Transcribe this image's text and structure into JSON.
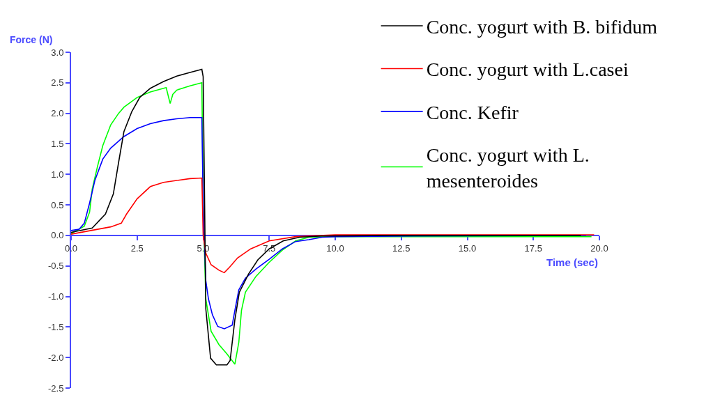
{
  "chart_data": {
    "type": "line",
    "xlabel": "Time (sec)",
    "ylabel": "Force (N)",
    "xlim": [
      0,
      20
    ],
    "xticks": [
      {
        "value": 0,
        "label": "0.0"
      },
      {
        "value": 2.5,
        "label": "2.5"
      },
      {
        "value": 5,
        "label": "5.0"
      },
      {
        "value": 7.5,
        "label": "7.5"
      },
      {
        "value": 10,
        "label": "10.0"
      },
      {
        "value": 12.5,
        "label": "12.5"
      },
      {
        "value": 15,
        "label": "15.0"
      },
      {
        "value": 17.5,
        "label": "17.5"
      },
      {
        "value": 20,
        "label": "20.0"
      }
    ],
    "ylim": [
      -2.5,
      3.0
    ],
    "yticks": [
      {
        "value": -2.5,
        "label": "-2.5"
      },
      {
        "value": -2,
        "label": "-2.0"
      },
      {
        "value": -1.5,
        "label": "-1.5"
      },
      {
        "value": -1,
        "label": "-1.0"
      },
      {
        "value": -0.5,
        "label": "-0.5"
      },
      {
        "value": 0,
        "label": "0.0"
      },
      {
        "value": 0.5,
        "label": "0.5"
      },
      {
        "value": 1,
        "label": "1.0"
      },
      {
        "value": 1.5,
        "label": "1.5"
      },
      {
        "value": 2,
        "label": "2.0"
      },
      {
        "value": 2.5,
        "label": "2.5"
      },
      {
        "value": 3,
        "label": "3.0"
      }
    ],
    "legend": "top right",
    "line_style": "solid",
    "marker": "none",
    "series": [
      {
        "name": "Conc. yogurt with B. bifidum",
        "color": "#000000",
        "x": [
          0,
          0.8,
          1.3,
          1.6,
          1.8,
          2.0,
          2.3,
          2.6,
          3.0,
          3.5,
          4.0,
          4.5,
          4.95,
          5.0,
          5.1,
          5.28,
          5.5,
          5.9,
          6.02,
          6.2,
          6.37,
          6.72,
          7.07,
          7.5,
          8.03,
          8.65,
          9.5,
          12,
          15,
          19.3
        ],
        "values": [
          0.05,
          0.12,
          0.35,
          0.68,
          1.2,
          1.7,
          2.03,
          2.26,
          2.41,
          2.52,
          2.61,
          2.67,
          2.72,
          2.6,
          -1.2,
          -2.01,
          -2.12,
          -2.12,
          -2.05,
          -1.38,
          -0.93,
          -0.63,
          -0.4,
          -0.22,
          -0.09,
          -0.03,
          -0.01,
          0,
          0,
          0
        ]
      },
      {
        "name": "Conc. yogurt with L.casei",
        "color": "#ff0000",
        "x": [
          0,
          0.5,
          1.5,
          1.9,
          2.1,
          2.5,
          3.0,
          3.5,
          4.0,
          4.5,
          4.95,
          5.0,
          5.1,
          5.3,
          5.6,
          5.8,
          6.0,
          6.3,
          6.8,
          7.5,
          8.5,
          10,
          15,
          19.8
        ],
        "values": [
          0.02,
          0.06,
          0.14,
          0.2,
          0.35,
          0.6,
          0.8,
          0.87,
          0.9,
          0.93,
          0.94,
          0.0,
          -0.29,
          -0.48,
          -0.57,
          -0.61,
          -0.52,
          -0.37,
          -0.22,
          -0.09,
          -0.02,
          0.01,
          0.01,
          0.01
        ]
      },
      {
        "name": "Conc. Kefir",
        "color": "#0000ff",
        "x": [
          0,
          0.3,
          0.5,
          0.7,
          0.9,
          1.2,
          1.5,
          2.0,
          2.5,
          3.0,
          3.5,
          4.0,
          4.5,
          4.95,
          5.0,
          5.1,
          5.2,
          5.35,
          5.55,
          5.8,
          6.1,
          6.2,
          6.35,
          6.6,
          7.0,
          7.5,
          8.0,
          8.5,
          9.0,
          9.5,
          10,
          13,
          19.5
        ],
        "values": [
          0.08,
          0.1,
          0.2,
          0.53,
          0.9,
          1.25,
          1.43,
          1.62,
          1.75,
          1.83,
          1.88,
          1.91,
          1.93,
          1.93,
          0.5,
          -0.74,
          -1.04,
          -1.3,
          -1.49,
          -1.53,
          -1.47,
          -1.23,
          -0.89,
          -0.7,
          -0.55,
          -0.39,
          -0.22,
          -0.1,
          -0.07,
          -0.03,
          -0.02,
          -0.01,
          0
        ]
      },
      {
        "name": "Conc. yogurt with L. mesenteroides",
        "color": "#00ff00",
        "x": [
          0,
          0.5,
          0.7,
          0.8,
          1.0,
          1.2,
          1.5,
          1.8,
          2.0,
          2.5,
          3.0,
          3.5,
          3.6,
          3.75,
          3.85,
          4.0,
          4.5,
          4.95,
          5.0,
          5.1,
          5.3,
          5.6,
          5.9,
          6.2,
          6.35,
          6.45,
          6.6,
          7.0,
          7.5,
          8.0,
          8.5,
          9.0,
          10,
          15,
          19.7
        ],
        "values": [
          0.03,
          0.15,
          0.38,
          0.76,
          1.13,
          1.47,
          1.81,
          2.0,
          2.1,
          2.26,
          2.35,
          2.41,
          2.42,
          2.16,
          2.31,
          2.38,
          2.45,
          2.5,
          0.5,
          -1.04,
          -1.57,
          -1.79,
          -1.94,
          -2.11,
          -1.75,
          -1.23,
          -0.93,
          -0.67,
          -0.44,
          -0.24,
          -0.09,
          -0.03,
          -0.02,
          -0.02,
          -0.02
        ]
      }
    ]
  }
}
